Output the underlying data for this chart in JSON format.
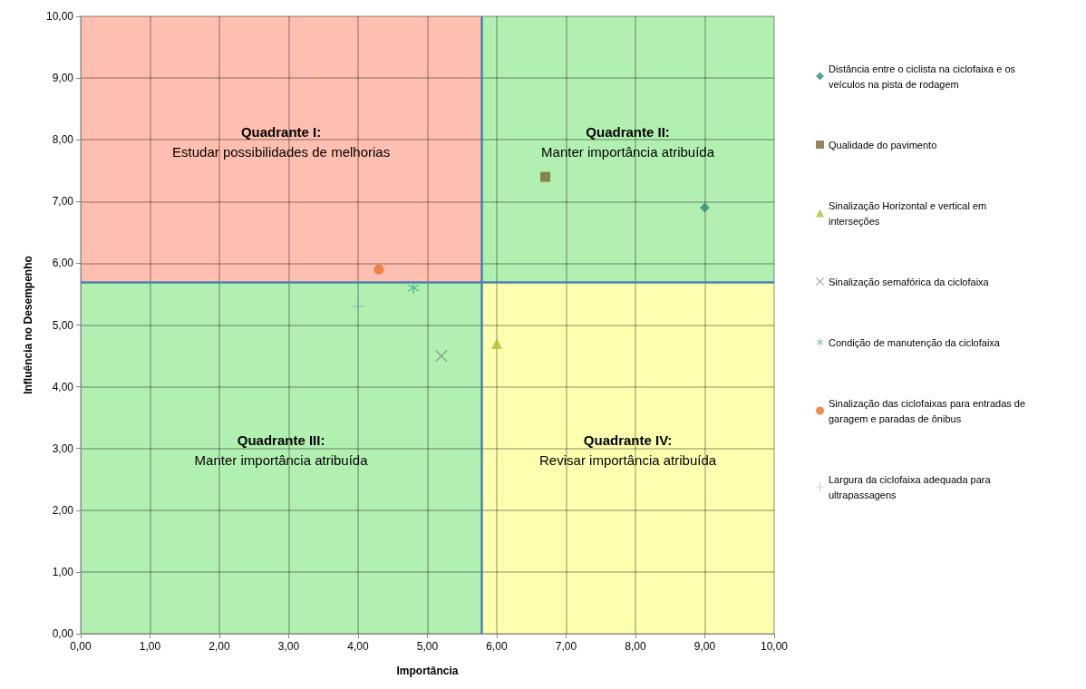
{
  "chart_data": {
    "type": "scatter",
    "xlabel": "Importância",
    "ylabel": "Influência no Desempenho",
    "xlim": [
      0,
      10
    ],
    "ylim": [
      0,
      10
    ],
    "xticks": [
      {
        "value": 0,
        "label": "0,00"
      },
      {
        "value": 1,
        "label": "1,00"
      },
      {
        "value": 2,
        "label": "2,00"
      },
      {
        "value": 3,
        "label": "3,00"
      },
      {
        "value": 4,
        "label": "4,00"
      },
      {
        "value": 5,
        "label": "5,00"
      },
      {
        "value": 6,
        "label": "6,00"
      },
      {
        "value": 7,
        "label": "7,00"
      },
      {
        "value": 8,
        "label": "8,00"
      },
      {
        "value": 9,
        "label": "9,00"
      },
      {
        "value": 10,
        "label": "10,00"
      }
    ],
    "yticks": [
      {
        "value": 0,
        "label": "0,00"
      },
      {
        "value": 1,
        "label": "1,00"
      },
      {
        "value": 2,
        "label": "2,00"
      },
      {
        "value": 3,
        "label": "3,00"
      },
      {
        "value": 4,
        "label": "4,00"
      },
      {
        "value": 5,
        "label": "5,00"
      },
      {
        "value": 6,
        "label": "6,00"
      },
      {
        "value": 7,
        "label": "7,00"
      },
      {
        "value": 8,
        "label": "8,00"
      },
      {
        "value": 9,
        "label": "9,00"
      },
      {
        "value": 10,
        "label": "10,00"
      }
    ],
    "grid": true,
    "legend": "right",
    "series": [
      {
        "name": "Distância entre o ciclista na ciclofaixa e os veículos na pista de rodagem",
        "color": "#2e8b74",
        "marker": "diamond",
        "x": [
          9.0
        ],
        "values": [
          6.9
        ]
      },
      {
        "name": "Qualidade do pavimento",
        "color": "#776a30",
        "marker": "square",
        "x": [
          6.7
        ],
        "values": [
          7.4
        ]
      },
      {
        "name": "Sinalização Horizontal e vertical em  interseções",
        "color": "#a8c03c",
        "marker": "triangle",
        "x": [
          6.0
        ],
        "values": [
          4.7
        ]
      },
      {
        "name": "Sinalização semafórica da ciclofaixa",
        "color": "#7a8a80",
        "marker": "cross",
        "x": [
          5.2
        ],
        "values": [
          4.5
        ]
      },
      {
        "name": "Condição de manutenção da ciclofaixa",
        "color": "#3aa88a",
        "marker": "star",
        "x": [
          4.8
        ],
        "values": [
          5.6
        ]
      },
      {
        "name": "Sinalização das ciclofaixas para entradas de garagem e paradas de ônibus",
        "color": "#e8702c",
        "marker": "circle",
        "x": [
          4.3
        ],
        "values": [
          5.9
        ]
      },
      {
        "name": "Largura da ciclofaixa adequada para ultrapassagens",
        "color": "#7aa8b0",
        "marker": "plus",
        "x": [
          4.0
        ],
        "values": [
          5.3
        ]
      }
    ],
    "annotations": [
      "Quadrante I:\nEstudar possibilidades de melhorias",
      "Quadrante II:\nManter importância atribuída",
      "Quadrante III:\nManter importância atribuída",
      "Quadrante IV:\nRevisar importância atribuída"
    ],
    "ref_lines": [
      {
        "axis": "x",
        "value": 5.78,
        "color": "#4a82b0"
      },
      {
        "axis": "y",
        "value": 5.7,
        "color": "#4a82b0"
      }
    ]
  }
}
